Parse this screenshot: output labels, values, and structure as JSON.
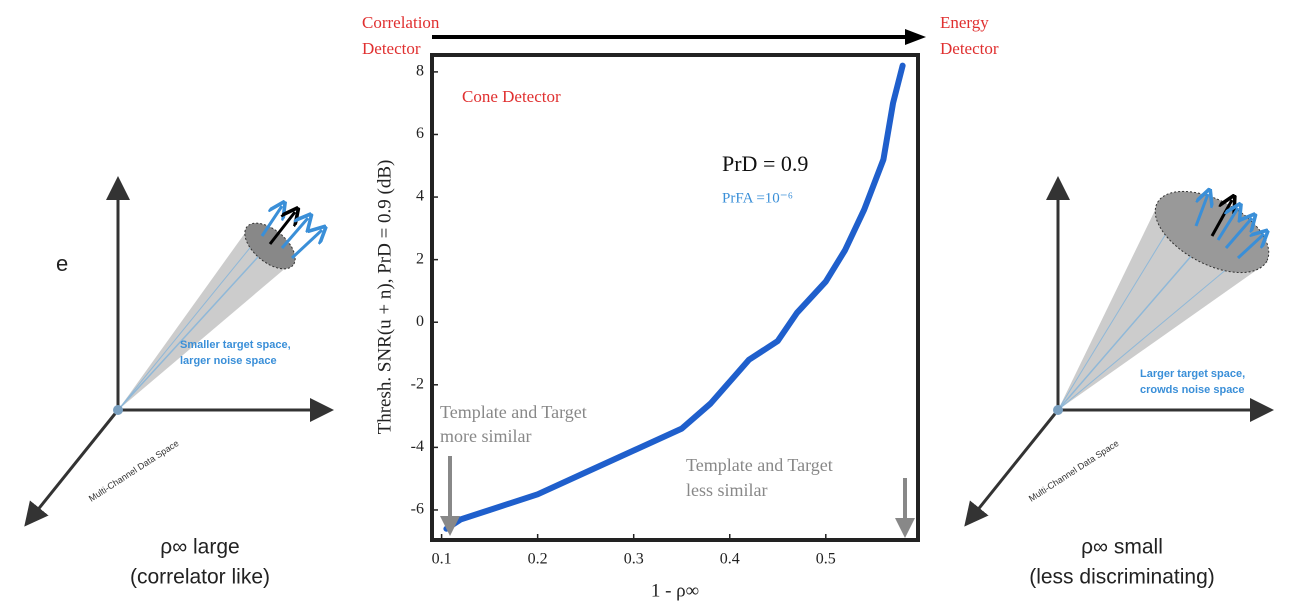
{
  "chart_data": {
    "type": "line",
    "x_label": "1 - ρ∞",
    "y_label": "Thresh. SNR(u + n), PrD = 0.9 (dB)",
    "x": [
      0.105,
      0.12,
      0.15,
      0.2,
      0.25,
      0.3,
      0.35,
      0.38,
      0.4,
      0.42,
      0.45,
      0.47,
      0.5,
      0.52,
      0.54,
      0.56,
      0.57,
      0.58
    ],
    "series": [
      {
        "name": "Cone Detector",
        "color": "#1f5fcc",
        "values": [
          -6.6,
          -6.3,
          -6.0,
          -5.5,
          -4.8,
          -4.1,
          -3.4,
          -2.6,
          -1.9,
          -1.2,
          -0.6,
          0.3,
          1.3,
          2.3,
          3.6,
          5.2,
          7.0,
          8.2
        ]
      }
    ],
    "xlim": [
      0.09,
      0.596
    ],
    "ylim": [
      -6.96,
      8.54
    ],
    "xticks": [
      0.1,
      0.2,
      0.3,
      0.4,
      0.5
    ],
    "yticks": [
      -6,
      -4,
      -2,
      0,
      2,
      4,
      6,
      8
    ],
    "annotations": {
      "pr_d": "PrD = 0.9",
      "pr_fa": "PrFA =10⁻⁶",
      "more_similar_1": "Template and Target",
      "more_similar_2": "more similar",
      "less_similar_1": "Template and Target",
      "less_similar_2": "less similar"
    }
  },
  "header": {
    "left_1": "Correlation",
    "left_2": "Detector",
    "right_1": "Energy",
    "right_2": "Detector"
  },
  "left_diagram": {
    "space_1": "Smaller target space,",
    "space_2": "larger noise space",
    "axis": "Multi-Channel Data Space",
    "caption_1": "ρ∞ large",
    "caption_2": "(correlator like)",
    "cropped": "e"
  },
  "right_diagram": {
    "space_1": "Larger target space,",
    "space_2": "crowds noise space",
    "axis": "Multi-Channel Data Space",
    "caption_1": "ρ∞ small",
    "caption_2": "(less discriminating)"
  }
}
